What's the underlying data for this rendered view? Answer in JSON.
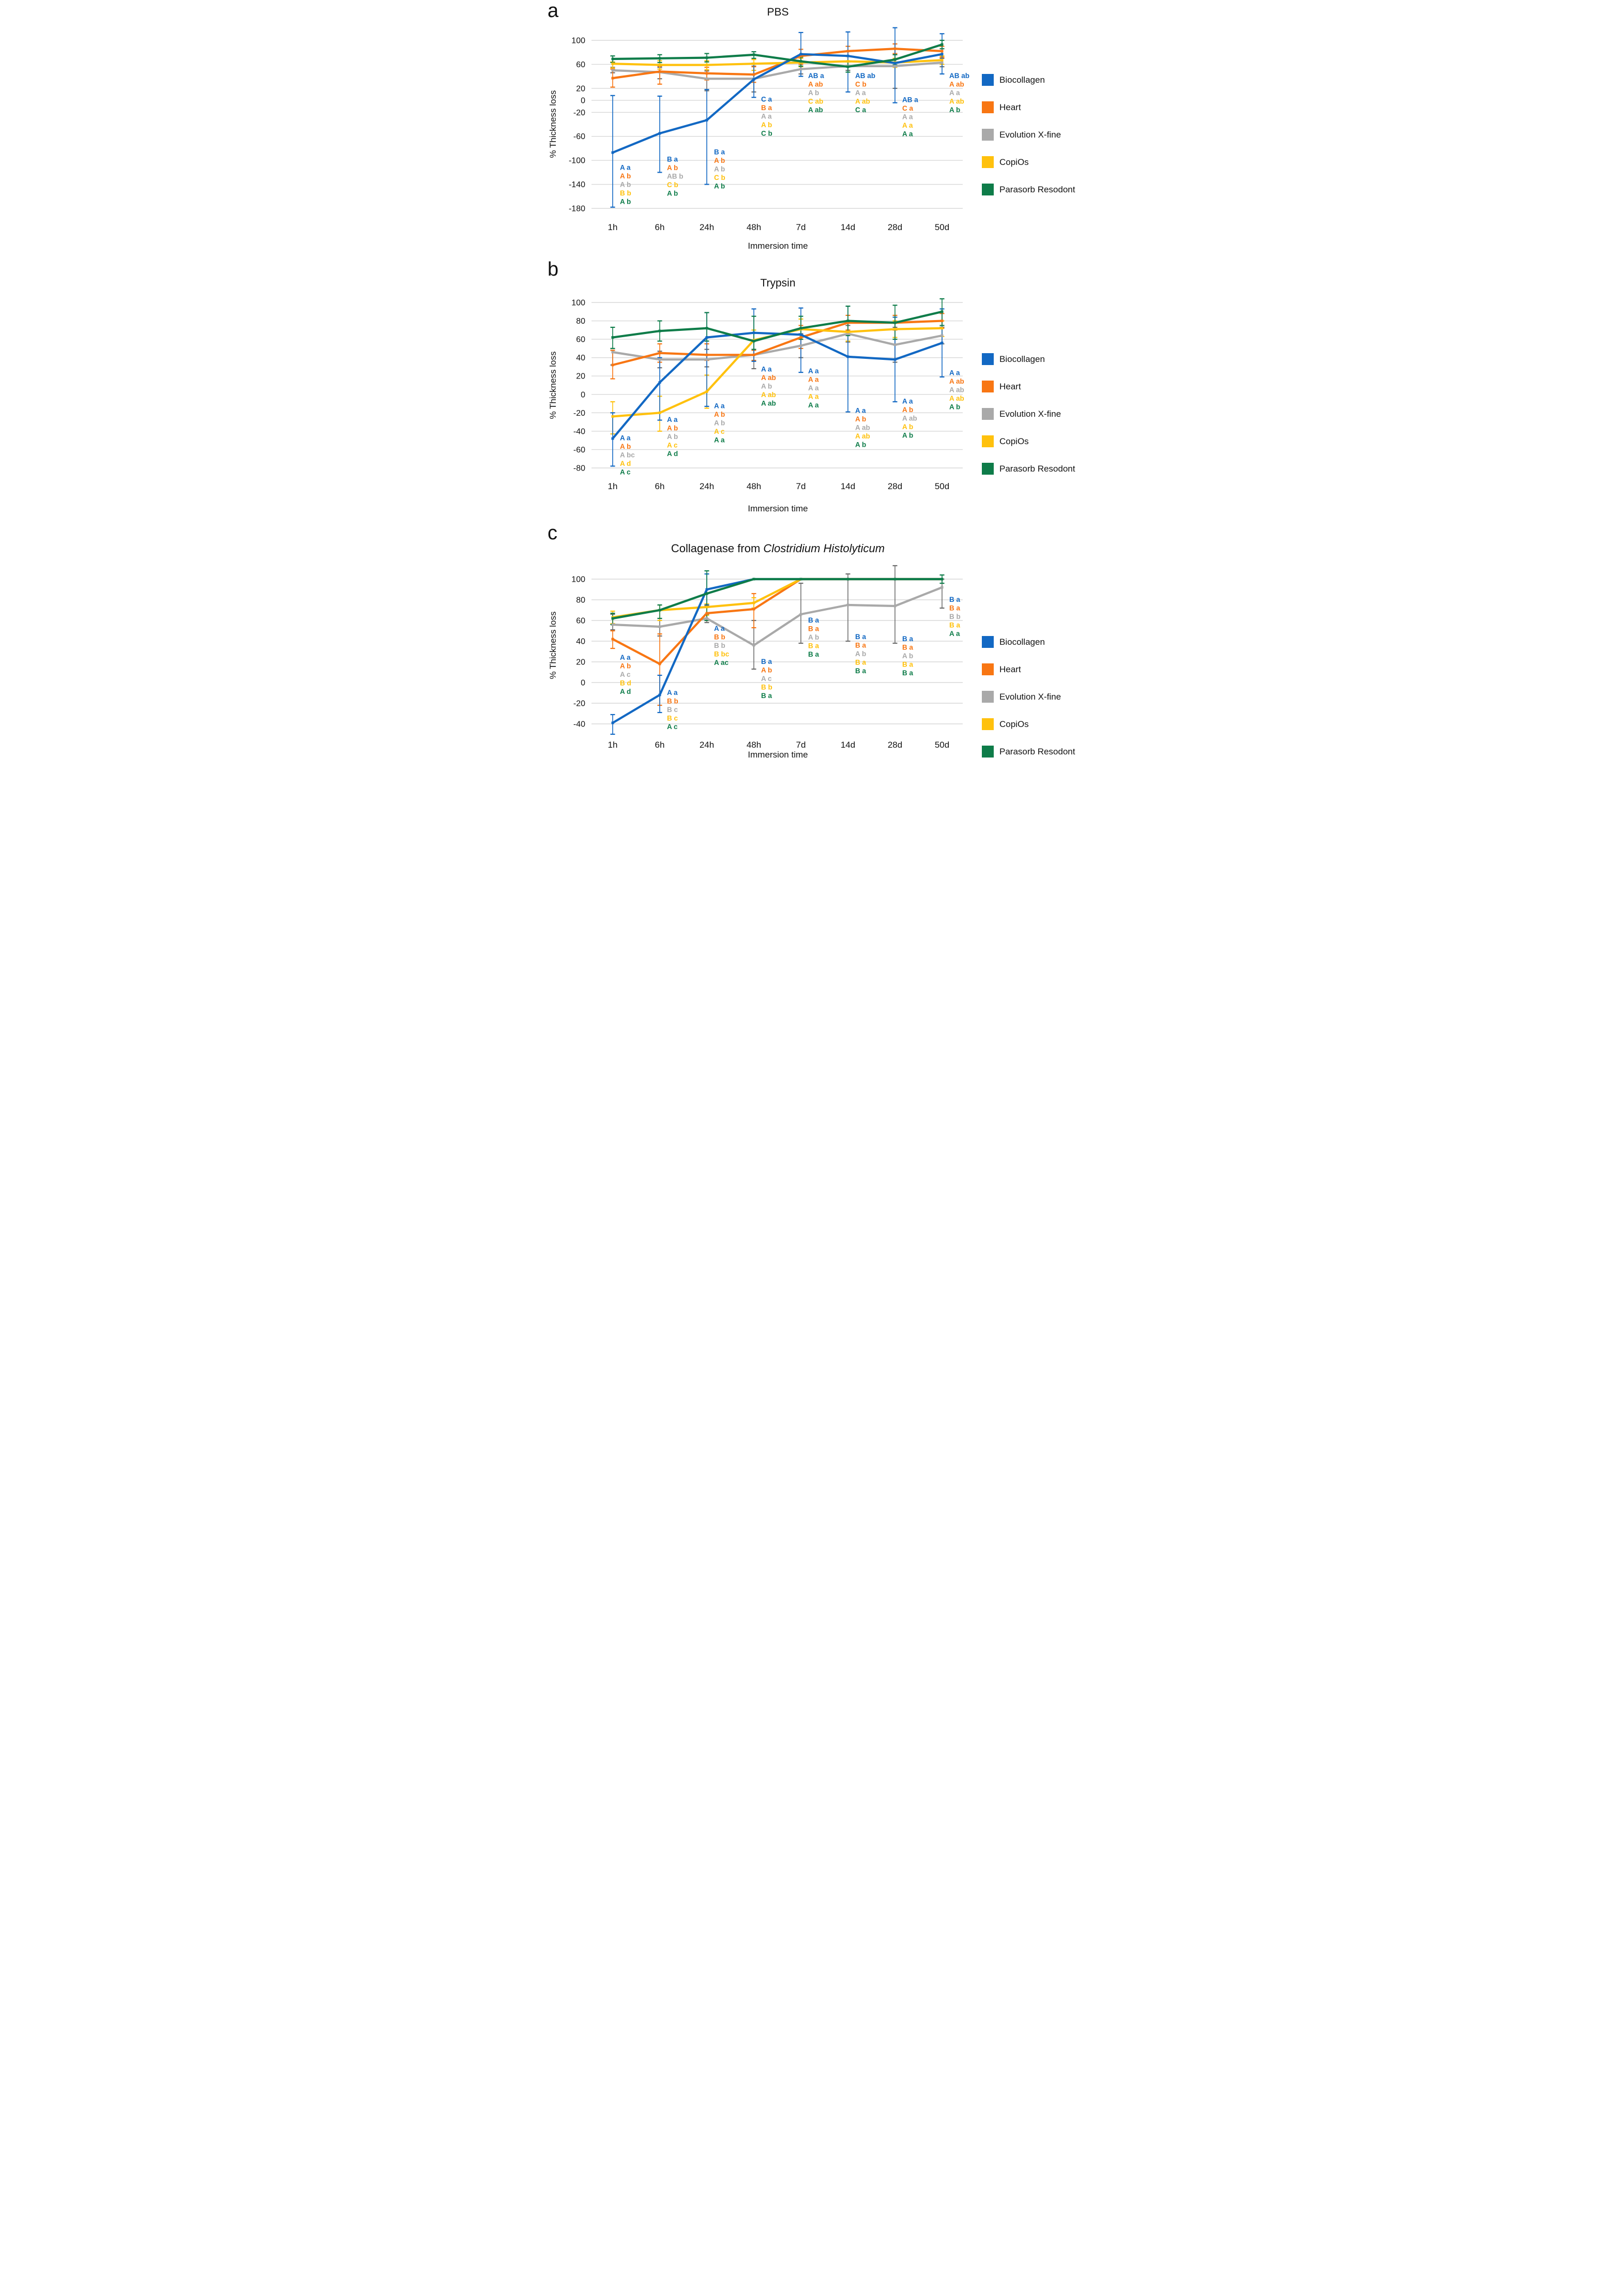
{
  "figure": {
    "panel_letters": [
      "a",
      "b",
      "c"
    ],
    "ylabel": "% Thickness loss",
    "xlabel": "Immersion time",
    "legend": [
      "Biocollagen",
      "Heart",
      "Evolution X-fine",
      "CopiOs",
      "Parasorb Resodont"
    ],
    "colors": {
      "Biocollagen": "#1268C3",
      "Heart": "#F87613",
      "Evolution X-fine": "#A9A9A9",
      "CopiOs": "#FFC10D",
      "Parasorb Resodont": "#0E7C49"
    },
    "gridline_color": "#d8d8d8",
    "legend_position": "right"
  },
  "chart_data": [
    {
      "id": "a",
      "type": "line",
      "title": "PBS",
      "xlabel": "Immersion time",
      "ylabel": "% Thickness loss",
      "categories": [
        "1h",
        "6h",
        "24h",
        "48h",
        "7d",
        "14d",
        "28d",
        "50d"
      ],
      "yticks": [
        100,
        60,
        20,
        0,
        -20,
        -60,
        -100,
        -140,
        -180
      ],
      "ylim": [
        -185,
        120
      ],
      "grid": true,
      "series": [
        {
          "name": "Biocollagen",
          "values": [
            -87,
            -55,
            -33,
            35,
            77,
            74,
            62,
            77
          ],
          "err_low": [
            -178,
            -120,
            -140,
            5,
            40,
            14,
            -4,
            44
          ],
          "err_high": [
            8,
            7,
            18,
            62,
            113,
            114,
            121,
            111
          ]
        },
        {
          "name": "Heart",
          "values": [
            37,
            48,
            45,
            43,
            74,
            82,
            86,
            82
          ],
          "err_low": [
            22,
            27,
            34,
            30,
            60,
            74,
            78,
            72
          ],
          "err_high": [
            52,
            57,
            55,
            56,
            85,
            90,
            94,
            90
          ]
        },
        {
          "name": "Evolution X-fine",
          "values": [
            50,
            47,
            36,
            36,
            52,
            57,
            57,
            63
          ],
          "err_low": [
            46,
            36,
            16,
            14,
            44,
            50,
            20,
            56
          ],
          "err_high": [
            55,
            55,
            49,
            57,
            60,
            64,
            94,
            70
          ]
        },
        {
          "name": "CopiOs",
          "values": [
            61,
            59,
            59,
            61,
            63,
            65,
            63,
            67
          ],
          "err_low": [
            54,
            52,
            51,
            50,
            56,
            58,
            55,
            60
          ],
          "err_high": [
            64,
            66,
            66,
            68,
            70,
            73,
            70,
            74
          ]
        },
        {
          "name": "Parasorb Resodont",
          "values": [
            69,
            70,
            71,
            76,
            65,
            56,
            68,
            93
          ],
          "err_low": [
            63,
            63,
            64,
            70,
            57,
            47,
            59,
            86
          ],
          "err_high": [
            74,
            76,
            78,
            81,
            72,
            64,
            76,
            100
          ]
        }
      ],
      "annotations": [
        {
          "at": "1h",
          "y": -116,
          "labels": [
            "A a",
            "A b",
            "A b",
            "B b",
            "A b"
          ]
        },
        {
          "at": "6h",
          "y": -102,
          "labels": [
            "B a",
            "A b",
            "AB b",
            "C b",
            "A b"
          ]
        },
        {
          "at": "24h",
          "y": -90,
          "labels": [
            "B a",
            "A b",
            "A b",
            "C b",
            "A b"
          ]
        },
        {
          "at": "48h",
          "y": -2,
          "labels": [
            "C a",
            "B a",
            "A a",
            "A b",
            "C b"
          ]
        },
        {
          "at": "7d",
          "y": 37,
          "labels": [
            "AB a",
            "A ab",
            "A b",
            "C ab",
            "A ab"
          ]
        },
        {
          "at": "14d",
          "y": 37,
          "labels": [
            "AB ab",
            "C b",
            "A a",
            "A ab",
            "C a"
          ]
        },
        {
          "at": "28d",
          "y": -3,
          "labels": [
            "AB a",
            "C a",
            "A a",
            "A a",
            "A a"
          ]
        },
        {
          "at": "50d",
          "y": 37,
          "labels": [
            "AB ab",
            "A ab",
            "A a",
            "A ab",
            "A b"
          ]
        }
      ]
    },
    {
      "id": "b",
      "type": "line",
      "title": "Trypsin",
      "xlabel": "Immersion time",
      "ylabel": "% Thickness loss",
      "categories": [
        "1h",
        "6h",
        "24h",
        "48h",
        "7d",
        "14d",
        "28d",
        "50d"
      ],
      "yticks": [
        100,
        80,
        60,
        40,
        20,
        0,
        -20,
        -40,
        -60,
        -80
      ],
      "ylim": [
        -85,
        110
      ],
      "grid": true,
      "series": [
        {
          "name": "Biocollagen",
          "values": [
            -48,
            13,
            62,
            67,
            65,
            41,
            38,
            56
          ],
          "err_low": [
            -78,
            -28,
            -13,
            36,
            24,
            -19,
            -8,
            19
          ],
          "err_high": [
            -20,
            40,
            89,
            93,
            94,
            96,
            84,
            93
          ]
        },
        {
          "name": "Heart",
          "values": [
            32,
            45,
            43,
            43,
            62,
            78,
            78,
            80
          ],
          "err_low": [
            17,
            35,
            37,
            37,
            50,
            70,
            70,
            72
          ],
          "err_high": [
            48,
            55,
            55,
            48,
            75,
            86,
            86,
            88
          ]
        },
        {
          "name": "Evolution X-fine",
          "values": [
            46,
            38,
            38,
            43,
            53,
            66,
            54,
            64
          ],
          "err_low": [
            32,
            29,
            30,
            28,
            40,
            57,
            35,
            55
          ],
          "err_high": [
            48,
            47,
            49,
            48,
            66,
            75,
            73,
            73
          ]
        },
        {
          "name": "CopiOs",
          "values": [
            -24,
            -20,
            3,
            59,
            71,
            68,
            71,
            72
          ],
          "err_low": [
            -43,
            -40,
            -15,
            49,
            60,
            58,
            62,
            63
          ],
          "err_high": [
            -8,
            -2,
            21,
            70,
            82,
            78,
            80,
            80
          ]
        },
        {
          "name": "Parasorb Resodont",
          "values": [
            62,
            69,
            72,
            58,
            72,
            80,
            78,
            90
          ],
          "err_low": [
            50,
            58,
            58,
            49,
            60,
            64,
            60,
            75
          ],
          "err_high": [
            73,
            80,
            89,
            85,
            85,
            96,
            97,
            104
          ]
        }
      ],
      "annotations": [
        {
          "at": "1h",
          "y": -50,
          "labels": [
            "A a",
            "A b",
            "A bc",
            "A d",
            "A c"
          ]
        },
        {
          "at": "6h",
          "y": -30,
          "labels": [
            "A a",
            "A b",
            "A b",
            "A c",
            "A d"
          ]
        },
        {
          "at": "24h",
          "y": -15,
          "labels": [
            "A a",
            "A b",
            "A b",
            "A c",
            "A a"
          ]
        },
        {
          "at": "48h",
          "y": 25,
          "labels": [
            "A a",
            "A ab",
            "A b",
            "A ab",
            "A ab"
          ]
        },
        {
          "at": "7d",
          "y": 23,
          "labels": [
            "A a",
            "A a",
            "A a",
            "A a",
            "A a"
          ]
        },
        {
          "at": "14d",
          "y": -20,
          "labels": [
            "A a",
            "A b",
            "A ab",
            "A ab",
            "A b"
          ]
        },
        {
          "at": "28d",
          "y": -10,
          "labels": [
            "A a",
            "A b",
            "A ab",
            "A b",
            "A b"
          ]
        },
        {
          "at": "50d",
          "y": 21,
          "labels": [
            "A a",
            "A ab",
            "A ab",
            "A ab",
            "A b"
          ]
        }
      ]
    },
    {
      "id": "c",
      "type": "line",
      "title": "Collagenase from Clostridium Histolyticum",
      "title_plain": "Collagenase from ",
      "title_italic": "Clostridium Histolyticum",
      "xlabel": "Immersion time",
      "ylabel": "% Thickness loss",
      "categories": [
        "1h",
        "6h",
        "24h",
        "48h",
        "7d",
        "14d",
        "28d",
        "50d"
      ],
      "yticks": [
        100,
        80,
        60,
        40,
        20,
        0,
        -20,
        -40
      ],
      "ylim": [
        -55,
        115
      ],
      "grid": true,
      "series": [
        {
          "name": "Biocollagen",
          "values": [
            -39,
            -12,
            90,
            100,
            100,
            100,
            100,
            100
          ],
          "err_low": [
            -50,
            -29,
            75,
            null,
            null,
            null,
            null,
            null
          ],
          "err_high": [
            -31,
            7,
            105,
            null,
            null,
            null,
            null,
            null
          ]
        },
        {
          "name": "Heart",
          "values": [
            42,
            18,
            67,
            71,
            100,
            100,
            100,
            100
          ],
          "err_low": [
            33,
            -22,
            60,
            53,
            null,
            null,
            null,
            null
          ],
          "err_high": [
            50,
            47,
            74,
            86,
            null,
            null,
            null,
            null
          ]
        },
        {
          "name": "Evolution X-fine",
          "values": [
            56,
            54,
            62,
            36,
            66,
            75,
            74,
            92
          ],
          "err_low": [
            51,
            45,
            58,
            13,
            38,
            40,
            38,
            72
          ],
          "err_high": [
            66,
            62,
            66,
            60,
            96,
            105,
            113,
            100
          ]
        },
        {
          "name": "CopiOs",
          "values": [
            63,
            70,
            73,
            77,
            100,
            100,
            100,
            100
          ],
          "err_low": [
            57,
            60,
            65,
            72,
            null,
            null,
            null,
            null
          ],
          "err_high": [
            69,
            75,
            76,
            82,
            null,
            null,
            null,
            null
          ]
        },
        {
          "name": "Parasorb Resodont",
          "values": [
            62,
            70,
            86,
            100,
            100,
            100,
            100,
            100
          ],
          "err_low": [
            56,
            62,
            60,
            null,
            null,
            null,
            null,
            96
          ],
          "err_high": [
            67,
            75,
            108,
            null,
            null,
            null,
            null,
            104
          ]
        }
      ],
      "annotations": [
        {
          "at": "1h",
          "y": 22,
          "labels": [
            "A a",
            "A b",
            "A c",
            "B d",
            "A d"
          ]
        },
        {
          "at": "6h",
          "y": -12,
          "labels": [
            "A a",
            "B b",
            "B c",
            "B c",
            "A c"
          ]
        },
        {
          "at": "24h",
          "y": 50,
          "labels": [
            "A a",
            "B b",
            "B b",
            "B bc",
            "A ac"
          ]
        },
        {
          "at": "48h",
          "y": 18,
          "labels": [
            "B a",
            "A b",
            "A c",
            "B b",
            "B a"
          ]
        },
        {
          "at": "7d",
          "y": 58,
          "labels": [
            "B a",
            "B a",
            "A b",
            "B a",
            "B a"
          ]
        },
        {
          "at": "14d",
          "y": 42,
          "labels": [
            "B a",
            "B a",
            "A b",
            "B a",
            "B a"
          ]
        },
        {
          "at": "28d",
          "y": 40,
          "labels": [
            "B a",
            "B a",
            "A b",
            "B a",
            "B a"
          ]
        },
        {
          "at": "50d",
          "y": 78,
          "labels": [
            "B a",
            "B a",
            "B b",
            "B a",
            "A a"
          ]
        }
      ]
    }
  ]
}
